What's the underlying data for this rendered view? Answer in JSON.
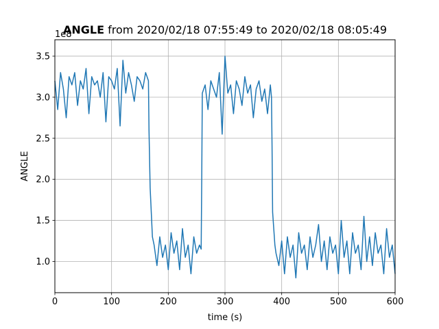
{
  "chart_data": {
    "type": "line",
    "title_bold": "ANGLE",
    "title_rest": " from 2020/02/18 07:55:49 to 2020/02/18 08:05:49",
    "xlabel": "time (s)",
    "ylabel": "ANGLE",
    "offset_text": "1e8",
    "xlim": [
      0,
      600
    ],
    "ylim": [
      0.62,
      3.7
    ],
    "x_ticks": [
      0,
      100,
      200,
      300,
      400,
      500,
      600
    ],
    "x_tick_labels": [
      "0",
      "100",
      "200",
      "300",
      "400",
      "500",
      "600"
    ],
    "y_ticks": [
      1.0,
      1.5,
      2.0,
      2.5,
      3.0,
      3.5
    ],
    "y_tick_labels": [
      "1.0",
      "1.5",
      "2.0",
      "2.5",
      "3.0",
      "3.5"
    ],
    "grid": true,
    "line_color": "#1f77b4",
    "series": [
      {
        "x": [
          0,
          5,
          10,
          15,
          20,
          25,
          30,
          35,
          40,
          45,
          50,
          55,
          60,
          65,
          70,
          75,
          80,
          85,
          90,
          95,
          100,
          105,
          110,
          115,
          120,
          125,
          130,
          135,
          140,
          145,
          150,
          155,
          160,
          165,
          166,
          168,
          172,
          175,
          180,
          185,
          190,
          195,
          200,
          205,
          210,
          215,
          220,
          225,
          230,
          235,
          240,
          245,
          250,
          255,
          258,
          259,
          260,
          265,
          270,
          275,
          280,
          285,
          290,
          295,
          300,
          305,
          310,
          315,
          320,
          325,
          330,
          335,
          340,
          345,
          350,
          355,
          360,
          365,
          370,
          375,
          380,
          382,
          383,
          384,
          388,
          390,
          395,
          400,
          405,
          410,
          415,
          420,
          425,
          430,
          435,
          440,
          445,
          450,
          455,
          460,
          465,
          470,
          475,
          480,
          485,
          490,
          495,
          500,
          505,
          510,
          515,
          520,
          525,
          530,
          535,
          540,
          545,
          550,
          555,
          560,
          565,
          570,
          575,
          580,
          585,
          590,
          595,
          600
        ],
        "values": [
          3.2,
          2.85,
          3.3,
          3.1,
          2.75,
          3.25,
          3.15,
          3.3,
          2.9,
          3.2,
          3.1,
          3.35,
          2.8,
          3.25,
          3.15,
          3.2,
          3.0,
          3.3,
          2.7,
          3.25,
          3.2,
          3.1,
          3.35,
          2.65,
          3.45,
          3.05,
          3.3,
          3.15,
          2.95,
          3.25,
          3.2,
          3.1,
          3.3,
          3.2,
          2.6,
          1.9,
          1.3,
          1.2,
          0.95,
          1.3,
          1.05,
          1.2,
          0.9,
          1.35,
          1.1,
          1.25,
          0.9,
          1.4,
          1.05,
          1.2,
          0.85,
          1.3,
          1.1,
          1.2,
          1.15,
          2.0,
          3.05,
          3.15,
          2.85,
          3.2,
          3.1,
          3.0,
          3.3,
          2.55,
          3.5,
          3.05,
          3.15,
          2.8,
          3.2,
          3.1,
          2.9,
          3.25,
          3.05,
          3.15,
          2.75,
          3.1,
          3.2,
          2.95,
          3.1,
          2.8,
          3.15,
          3.0,
          2.4,
          1.6,
          1.2,
          1.1,
          0.95,
          1.25,
          0.85,
          1.3,
          1.05,
          1.2,
          0.8,
          1.35,
          1.1,
          1.2,
          0.9,
          1.3,
          1.05,
          1.2,
          1.45,
          1.0,
          1.25,
          0.9,
          1.3,
          1.1,
          1.2,
          0.85,
          1.5,
          1.05,
          1.25,
          0.85,
          1.35,
          1.1,
          1.2,
          0.9,
          1.55,
          1.0,
          1.3,
          0.95,
          1.35,
          1.1,
          1.2,
          0.85,
          1.4,
          1.05,
          1.2,
          0.85
        ]
      }
    ]
  }
}
